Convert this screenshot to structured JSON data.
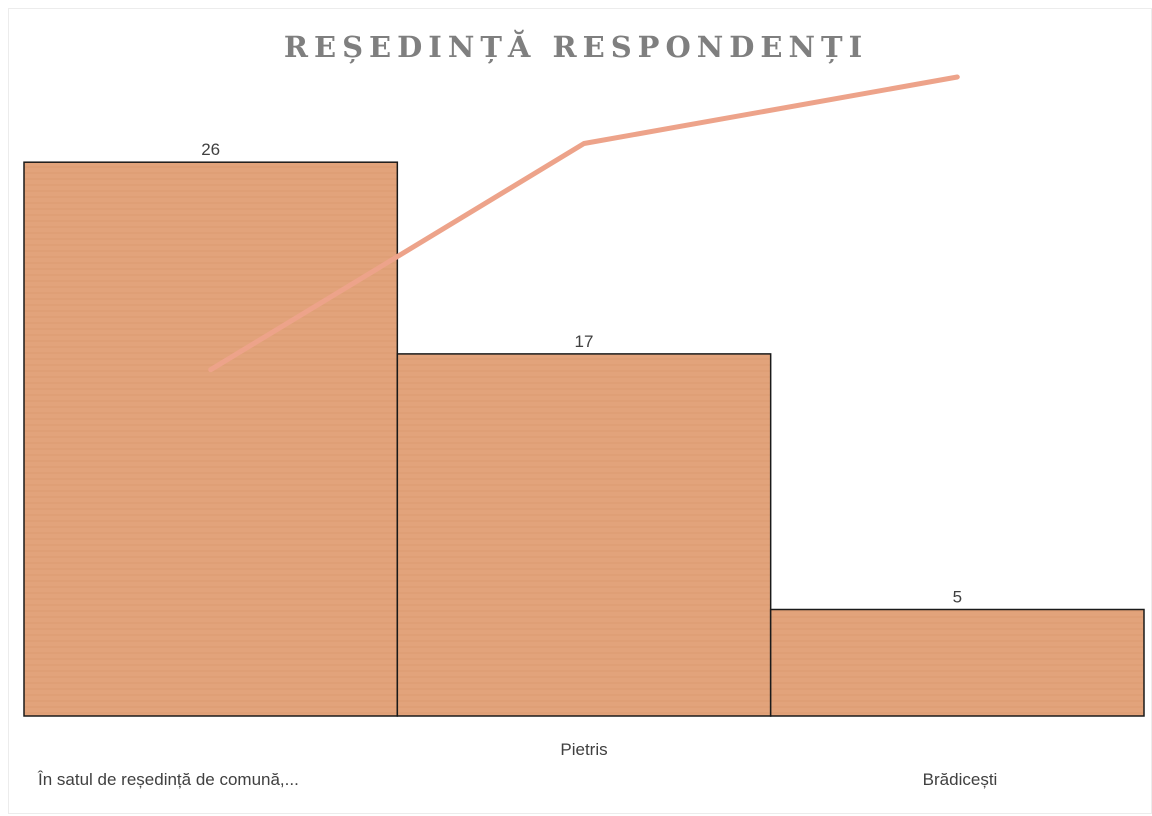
{
  "chart_data": {
    "type": "bar",
    "title": "REȘEDINȚĂ RESPONDENȚI",
    "categories": [
      "În satul de reședință de comună,...",
      "Pietris",
      "Brădicești"
    ],
    "values": [
      26,
      17,
      5
    ],
    "cumulative_line": [
      54.2,
      89.6,
      100
    ],
    "colors": {
      "bar": "#e2a37b",
      "bar_stroke": "#1a1a1a",
      "line": "#eda38a",
      "title": "#7f7f7f"
    },
    "ylim": [
      0,
      33
    ],
    "line_ylim": [
      0,
      100
    ],
    "grid": false,
    "legend": "none"
  }
}
